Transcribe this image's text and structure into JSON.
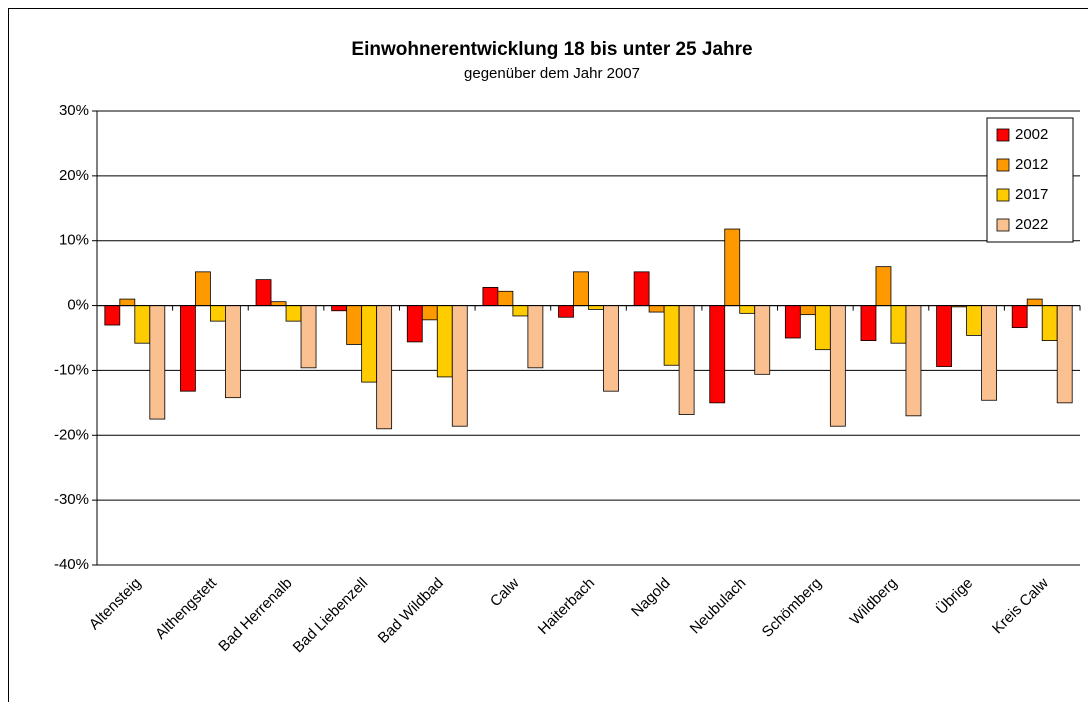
{
  "chart_data": {
    "type": "bar",
    "title": "Einwohnerentwicklung 18 bis unter 25 Jahre",
    "subtitle": "gegenüber dem Jahr 2007",
    "categories": [
      "Altensteig",
      "Althengstett",
      "Bad Herrenalb",
      "Bad Liebenzell",
      "Bad Wildbad",
      "Calw",
      "Haiterbach",
      "Nagold",
      "Neubulach",
      "Schömberg",
      "Wildberg",
      "Übrige",
      "Kreis Calw"
    ],
    "series": [
      {
        "name": "2002",
        "color": "#ff0000",
        "values": [
          -3.0,
          -13.2,
          4.0,
          -0.8,
          -5.6,
          2.8,
          -1.8,
          5.2,
          -15.0,
          -5.0,
          -5.4,
          -9.4,
          -3.4
        ]
      },
      {
        "name": "2012",
        "color": "#ff9900",
        "values": [
          1.0,
          5.2,
          0.6,
          -6.0,
          -2.2,
          2.2,
          5.2,
          -1.0,
          11.8,
          -1.4,
          6.0,
          -0.2,
          1.0
        ]
      },
      {
        "name": "2017",
        "color": "#ffcc00",
        "values": [
          -5.8,
          -2.4,
          -2.4,
          -11.8,
          -11.0,
          -1.6,
          -0.6,
          -9.2,
          -1.2,
          -6.8,
          -5.8,
          -4.6,
          -5.4
        ]
      },
      {
        "name": "2022",
        "color": "#fac090",
        "values": [
          -17.5,
          -14.2,
          -9.6,
          -19.0,
          -18.6,
          -9.6,
          -13.2,
          -16.8,
          -10.6,
          -18.6,
          -17.0,
          -14.6,
          -15.0
        ]
      }
    ],
    "ylim": [
      -40,
      30
    ],
    "yticks": [
      {
        "value": -40,
        "label": "-40%"
      },
      {
        "value": -30,
        "label": "-30%"
      },
      {
        "value": -20,
        "label": "-20%"
      },
      {
        "value": -10,
        "label": "-10%"
      },
      {
        "value": 0,
        "label": "0%"
      },
      {
        "value": 10,
        "label": "10%"
      },
      {
        "value": 20,
        "label": "20%"
      },
      {
        "value": 30,
        "label": "30%"
      }
    ],
    "grid": true,
    "legend": "top-right"
  }
}
